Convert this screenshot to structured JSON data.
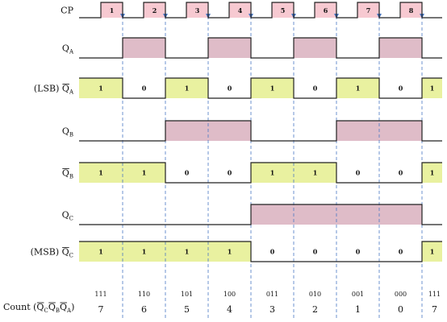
{
  "signals": {
    "cp": {
      "label": "CP",
      "pulses": [
        "1",
        "2",
        "3",
        "4",
        "5",
        "6",
        "7",
        "8"
      ]
    },
    "qa": {
      "label": "Q",
      "sub": "A"
    },
    "qa_bar": {
      "prefix": "(LSB)",
      "label": "Q",
      "sub": "A",
      "levels": [
        "1",
        "0",
        "1",
        "0",
        "1",
        "0",
        "1",
        "0",
        "1"
      ]
    },
    "qb": {
      "label": "Q",
      "sub": "B"
    },
    "qb_bar": {
      "label": "Q",
      "sub": "B",
      "levels": [
        "1",
        "1",
        "0",
        "0",
        "1",
        "1",
        "0",
        "0",
        "1"
      ]
    },
    "qc": {
      "label": "Q",
      "sub": "C"
    },
    "qc_bar": {
      "prefix": "(MSB)",
      "label": "Q",
      "sub": "C",
      "levels": [
        "1",
        "1",
        "1",
        "1",
        "0",
        "0",
        "0",
        "0",
        "1"
      ]
    }
  },
  "count": {
    "label": "Count",
    "binary": [
      "111",
      "110",
      "101",
      "100",
      "011",
      "010",
      "001",
      "000",
      "111"
    ],
    "decimal": [
      "7",
      "6",
      "5",
      "4",
      "3",
      "2",
      "1",
      "0",
      "7"
    ]
  },
  "colors": {
    "q_fill": "#dfbcc8",
    "q_bar_fill": "#e9f1a0",
    "cp_fill": "#f7c9d1",
    "trace": "#222222",
    "edge_marker": "#4a78c4"
  }
}
